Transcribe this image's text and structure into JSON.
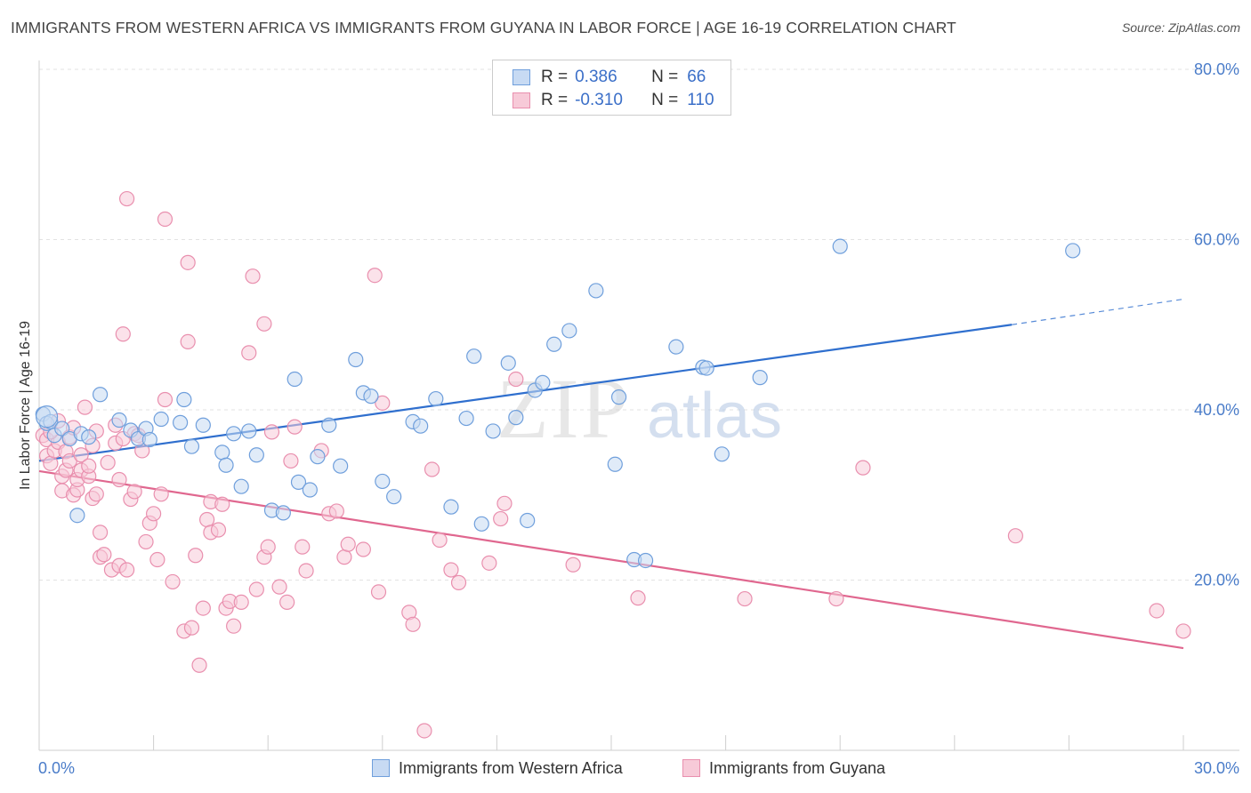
{
  "title": "IMMIGRANTS FROM WESTERN AFRICA VS IMMIGRANTS FROM GUYANA IN LABOR FORCE | AGE 16-19 CORRELATION CHART",
  "source": "Source: ZipAtlas.com",
  "watermark": {
    "zip": "ZIP",
    "atlas": "atlas"
  },
  "colors": {
    "blue_fill": "#c7daf3",
    "blue_stroke": "#6f9fdc",
    "blue_line": "#2f6fce",
    "pink_fill": "#f7cad8",
    "pink_stroke": "#e98fae",
    "pink_line": "#e0678f",
    "grid": "#e3e3e3",
    "tick": "#4a7cc9"
  },
  "legend": {
    "r_label": "R =",
    "n_label": "N =",
    "rows": [
      {
        "r": "0.386",
        "n": "66"
      },
      {
        "r": "-0.310",
        "n": "110"
      }
    ]
  },
  "chart_data": {
    "type": "scatter",
    "title": "IMMIGRANTS FROM WESTERN AFRICA VS IMMIGRANTS FROM GUYANA IN LABOR FORCE | AGE 16-19 CORRELATION CHART",
    "xlabel": "",
    "ylabel": "In Labor Force | Age 16-19",
    "xlim": [
      0,
      30
    ],
    "ylim": [
      0,
      80
    ],
    "x_tick_labels": [
      "0.0%",
      "30.0%"
    ],
    "y_ticks": [
      20,
      40,
      60,
      80
    ],
    "y_tick_labels": [
      "20.0%",
      "40.0%",
      "60.0%",
      "80.0%"
    ],
    "grid": true,
    "legend_position": "top-center",
    "series": [
      {
        "name": "Immigrants from Western Africa",
        "r": 0.386,
        "n": 66,
        "trend": {
          "x0": 0,
          "y0": 34.0,
          "x1": 25.5,
          "y1": 50.0,
          "dash_x1": 30,
          "dash_y1": 53.0
        },
        "points": [
          [
            0.1,
            39.5
          ],
          [
            0.2,
            38.4
          ],
          [
            0.3,
            38.6
          ],
          [
            0.4,
            37.0
          ],
          [
            0.6,
            37.8
          ],
          [
            0.8,
            36.6
          ],
          [
            1.1,
            37.2
          ],
          [
            1.0,
            27.6
          ],
          [
            1.6,
            41.8
          ],
          [
            2.1,
            38.8
          ],
          [
            2.4,
            37.6
          ],
          [
            2.6,
            36.6
          ],
          [
            2.8,
            37.8
          ],
          [
            2.9,
            36.5
          ],
          [
            3.2,
            38.9
          ],
          [
            3.7,
            38.5
          ],
          [
            3.8,
            41.2
          ],
          [
            4.0,
            35.7
          ],
          [
            4.3,
            38.2
          ],
          [
            4.8,
            35.0
          ],
          [
            4.9,
            33.5
          ],
          [
            5.1,
            37.2
          ],
          [
            5.3,
            31.0
          ],
          [
            5.7,
            34.7
          ],
          [
            5.5,
            37.5
          ],
          [
            6.1,
            28.2
          ],
          [
            6.4,
            27.9
          ],
          [
            6.7,
            43.6
          ],
          [
            6.8,
            31.5
          ],
          [
            7.1,
            30.6
          ],
          [
            7.3,
            34.5
          ],
          [
            7.6,
            38.2
          ],
          [
            7.9,
            33.4
          ],
          [
            8.3,
            45.9
          ],
          [
            8.5,
            42.0
          ],
          [
            8.7,
            41.6
          ],
          [
            9.0,
            31.6
          ],
          [
            9.3,
            29.8
          ],
          [
            9.8,
            38.6
          ],
          [
            10.0,
            38.1
          ],
          [
            10.4,
            41.3
          ],
          [
            10.8,
            28.6
          ],
          [
            11.2,
            39.0
          ],
          [
            11.4,
            46.3
          ],
          [
            11.6,
            26.6
          ],
          [
            11.9,
            37.5
          ],
          [
            12.3,
            45.5
          ],
          [
            12.5,
            39.1
          ],
          [
            12.8,
            27.0
          ],
          [
            13.0,
            42.3
          ],
          [
            13.2,
            43.2
          ],
          [
            13.5,
            47.7
          ],
          [
            13.9,
            49.3
          ],
          [
            14.6,
            54.0
          ],
          [
            15.1,
            33.6
          ],
          [
            15.2,
            41.5
          ],
          [
            15.6,
            22.4
          ],
          [
            15.9,
            22.3
          ],
          [
            16.7,
            47.4
          ],
          [
            17.4,
            45.0
          ],
          [
            17.5,
            44.9
          ],
          [
            17.9,
            34.8
          ],
          [
            18.9,
            43.8
          ],
          [
            21.0,
            59.2
          ],
          [
            27.1,
            58.7
          ],
          [
            1.3,
            36.8
          ]
        ]
      },
      {
        "name": "Immigrants from Guyana",
        "r": -0.31,
        "n": 110,
        "trend": {
          "x0": 0,
          "y0": 32.8,
          "x1": 30,
          "y1": 12.0
        },
        "points": [
          [
            0.1,
            37.0
          ],
          [
            0.2,
            36.5
          ],
          [
            0.2,
            34.6
          ],
          [
            0.3,
            33.7
          ],
          [
            0.4,
            35.2
          ],
          [
            0.5,
            38.7
          ],
          [
            0.5,
            36.2
          ],
          [
            0.6,
            32.2
          ],
          [
            0.6,
            30.5
          ],
          [
            0.7,
            35.1
          ],
          [
            0.7,
            32.9
          ],
          [
            0.8,
            36.8
          ],
          [
            0.8,
            34.0
          ],
          [
            0.9,
            30.0
          ],
          [
            1.0,
            30.6
          ],
          [
            1.0,
            31.8
          ],
          [
            1.1,
            32.9
          ],
          [
            1.1,
            34.7
          ],
          [
            1.2,
            40.3
          ],
          [
            1.3,
            32.2
          ],
          [
            1.3,
            33.4
          ],
          [
            1.4,
            35.8
          ],
          [
            1.4,
            29.6
          ],
          [
            1.5,
            30.1
          ],
          [
            1.6,
            22.7
          ],
          [
            1.6,
            25.6
          ],
          [
            1.7,
            23.0
          ],
          [
            1.8,
            33.8
          ],
          [
            1.9,
            21.2
          ],
          [
            2.0,
            36.1
          ],
          [
            2.0,
            38.2
          ],
          [
            2.1,
            21.7
          ],
          [
            2.1,
            31.8
          ],
          [
            2.2,
            48.9
          ],
          [
            2.3,
            21.2
          ],
          [
            2.3,
            64.8
          ],
          [
            2.4,
            29.5
          ],
          [
            2.5,
            30.4
          ],
          [
            2.5,
            37.2
          ],
          [
            2.6,
            37.0
          ],
          [
            2.7,
            35.2
          ],
          [
            2.8,
            24.5
          ],
          [
            2.9,
            26.7
          ],
          [
            3.0,
            27.8
          ],
          [
            3.1,
            22.4
          ],
          [
            3.2,
            30.1
          ],
          [
            3.3,
            62.4
          ],
          [
            3.3,
            41.2
          ],
          [
            3.5,
            19.8
          ],
          [
            3.8,
            14.0
          ],
          [
            3.9,
            48.0
          ],
          [
            3.9,
            57.3
          ],
          [
            4.0,
            14.4
          ],
          [
            4.1,
            22.9
          ],
          [
            4.2,
            10.0
          ],
          [
            4.3,
            16.7
          ],
          [
            4.4,
            27.1
          ],
          [
            4.5,
            29.2
          ],
          [
            4.5,
            25.6
          ],
          [
            4.7,
            25.9
          ],
          [
            4.8,
            28.9
          ],
          [
            4.9,
            16.7
          ],
          [
            5.0,
            17.5
          ],
          [
            5.1,
            14.6
          ],
          [
            5.3,
            17.4
          ],
          [
            5.5,
            46.7
          ],
          [
            5.6,
            55.7
          ],
          [
            5.7,
            18.9
          ],
          [
            5.9,
            22.7
          ],
          [
            5.9,
            50.1
          ],
          [
            6.0,
            23.9
          ],
          [
            6.1,
            37.4
          ],
          [
            6.3,
            19.2
          ],
          [
            6.5,
            17.4
          ],
          [
            6.6,
            34.0
          ],
          [
            6.7,
            38.0
          ],
          [
            6.9,
            23.9
          ],
          [
            7.0,
            21.1
          ],
          [
            7.4,
            35.2
          ],
          [
            7.6,
            27.8
          ],
          [
            7.8,
            28.1
          ],
          [
            8.0,
            22.7
          ],
          [
            8.1,
            24.2
          ],
          [
            8.5,
            23.6
          ],
          [
            8.8,
            55.8
          ],
          [
            8.9,
            18.6
          ],
          [
            9.0,
            40.8
          ],
          [
            9.7,
            16.2
          ],
          [
            9.8,
            14.8
          ],
          [
            10.1,
            2.3
          ],
          [
            10.3,
            33.0
          ],
          [
            10.5,
            24.7
          ],
          [
            10.8,
            21.2
          ],
          [
            11.0,
            19.7
          ],
          [
            11.8,
            22.0
          ],
          [
            12.1,
            27.2
          ],
          [
            12.2,
            29.0
          ],
          [
            12.5,
            43.6
          ],
          [
            14.0,
            21.8
          ],
          [
            15.7,
            17.9
          ],
          [
            18.5,
            17.8
          ],
          [
            20.9,
            17.8
          ],
          [
            21.6,
            33.2
          ],
          [
            25.6,
            25.2
          ],
          [
            29.3,
            16.4
          ],
          [
            30.0,
            14.0
          ],
          [
            1.5,
            37.5
          ],
          [
            0.9,
            37.9
          ],
          [
            2.2,
            36.6
          ],
          [
            0.3,
            37.4
          ]
        ]
      }
    ],
    "bottom_legend": [
      "Immigrants from Western Africa",
      "Immigrants from Guyana"
    ]
  }
}
